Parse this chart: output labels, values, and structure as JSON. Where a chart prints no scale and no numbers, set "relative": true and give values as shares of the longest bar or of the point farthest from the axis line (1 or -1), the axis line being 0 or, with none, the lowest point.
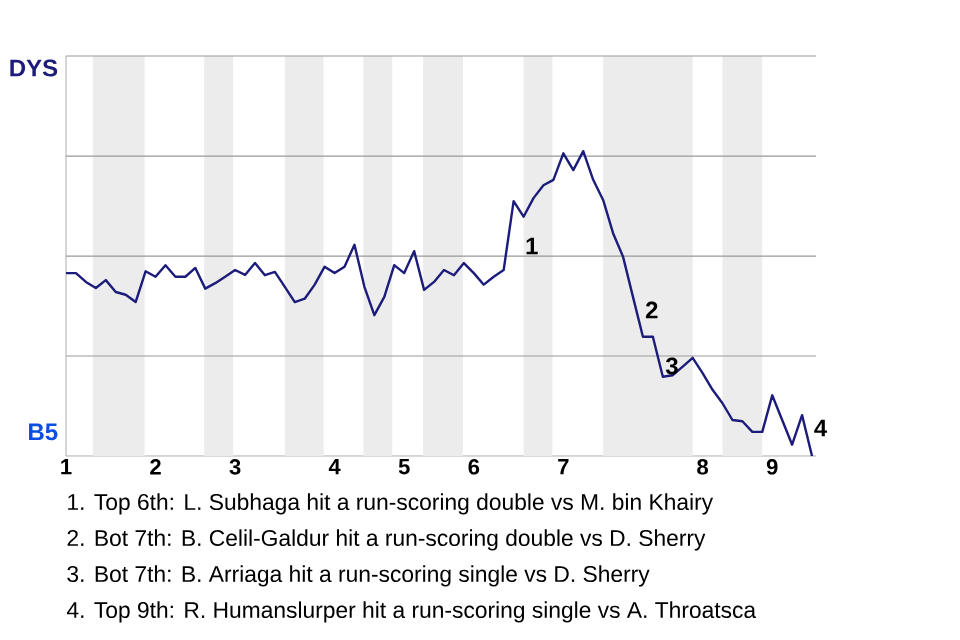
{
  "chart_data": {
    "type": "line",
    "relative": true,
    "categories": [
      "1",
      null,
      null,
      null,
      null,
      null,
      null,
      null,
      null,
      "2",
      null,
      null,
      null,
      null,
      null,
      null,
      null,
      "3",
      null,
      null,
      null,
      null,
      null,
      null,
      null,
      null,
      null,
      "4",
      null,
      null,
      null,
      null,
      null,
      null,
      "5",
      null,
      null,
      null,
      null,
      null,
      null,
      "6",
      null,
      null,
      null,
      null,
      null,
      null,
      null,
      null,
      "7",
      null,
      null,
      null,
      null,
      null,
      null,
      null,
      null,
      null,
      null,
      null,
      null,
      null,
      "8",
      null,
      null,
      null,
      null,
      null,
      null,
      "9",
      null,
      null,
      null,
      null
    ],
    "series": [
      {
        "color": "#1c1c7a",
        "values": [
          0.6,
          0.6,
          0.571,
          0.551,
          0.577,
          0.538,
          0.529,
          0.505,
          0.606,
          0.588,
          0.626,
          0.588,
          0.588,
          0.617,
          0.549,
          0.567,
          0.588,
          0.61,
          0.594,
          0.633,
          0.593,
          0.604,
          0.555,
          0.505,
          0.516,
          0.562,
          0.621,
          0.6,
          0.621,
          0.693,
          0.555,
          0.462,
          0.522,
          0.626,
          0.6,
          0.672,
          0.545,
          0.571,
          0.61,
          0.593,
          0.633,
          0.6,
          0.562,
          0.588,
          0.61,
          0.836,
          0.785,
          0.846,
          0.888,
          0.906,
          0.993,
          0.938,
          1.0,
          0.906,
          0.84,
          0.731,
          0.654,
          0.522,
          0.391,
          0.391,
          0.26,
          0.265,
          0.293,
          0.322,
          0.272,
          0.217,
          0.173,
          0.118,
          0.114,
          0.079,
          0.079,
          0.199,
          0.118,
          0.037,
          0.134,
          0.0
        ]
      }
    ],
    "ref_lines": [
      {
        "axis": "y",
        "value": 0.328,
        "color": "#999999"
      },
      {
        "axis": "y",
        "value": 0.656,
        "color": "#999999"
      },
      {
        "axis": "y",
        "value": 0.984,
        "color": "#999999"
      }
    ],
    "annotations": [
      "DYS",
      "B5",
      "1",
      "2",
      "3",
      "4",
      "1. Top 6th: L. Subhaga hit a run-scoring double vs M. bin Khairy",
      "2. Bot 7th: B. Celil-Galdur hit a run-scoring double vs D. Sherry",
      "3. Bot 7th: B. Arriaga hit a run-scoring single vs D. Sherry",
      "4. Top 9th: R. Humanslurper hit a run-scoring single vs A. Throatsca"
    ]
  }
}
